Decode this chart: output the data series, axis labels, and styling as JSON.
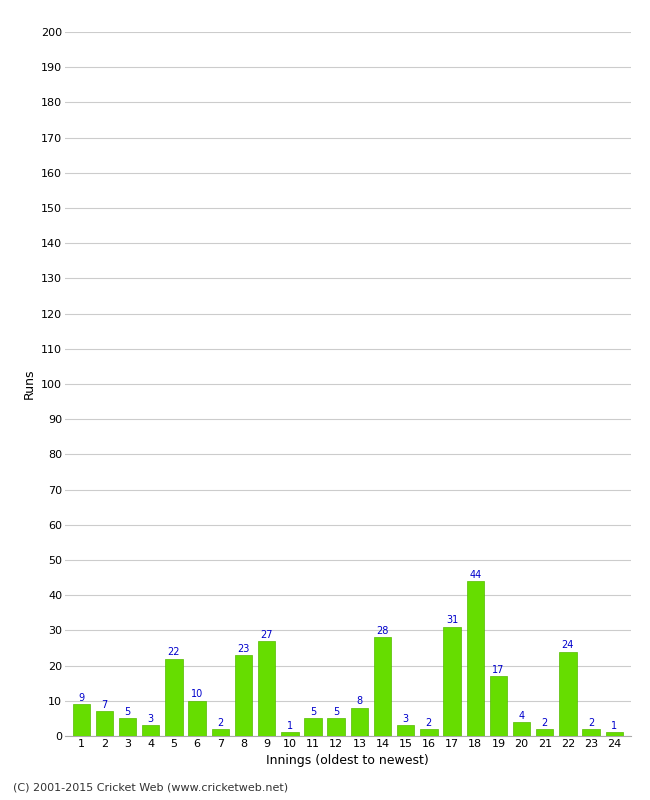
{
  "innings": [
    1,
    2,
    3,
    4,
    5,
    6,
    7,
    8,
    9,
    10,
    11,
    12,
    13,
    14,
    15,
    16,
    17,
    18,
    19,
    20,
    21,
    22,
    23,
    24
  ],
  "runs": [
    9,
    7,
    5,
    3,
    22,
    10,
    2,
    23,
    27,
    1,
    5,
    5,
    8,
    28,
    3,
    2,
    31,
    44,
    17,
    4,
    2,
    24,
    2,
    1
  ],
  "bar_color": "#66dd00",
  "bar_edge_color": "#55bb00",
  "label_color": "#0000cc",
  "xlabel": "Innings (oldest to newest)",
  "ylabel": "Runs",
  "ylim": [
    0,
    200
  ],
  "yticks": [
    0,
    10,
    20,
    30,
    40,
    50,
    60,
    70,
    80,
    90,
    100,
    110,
    120,
    130,
    140,
    150,
    160,
    170,
    180,
    190,
    200
  ],
  "bg_color": "#ffffff",
  "grid_color": "#cccccc",
  "footer": "(C) 2001-2015 Cricket Web (www.cricketweb.net)",
  "label_fontsize": 7,
  "tick_fontsize": 8,
  "axis_label_fontsize": 9,
  "footer_fontsize": 8
}
